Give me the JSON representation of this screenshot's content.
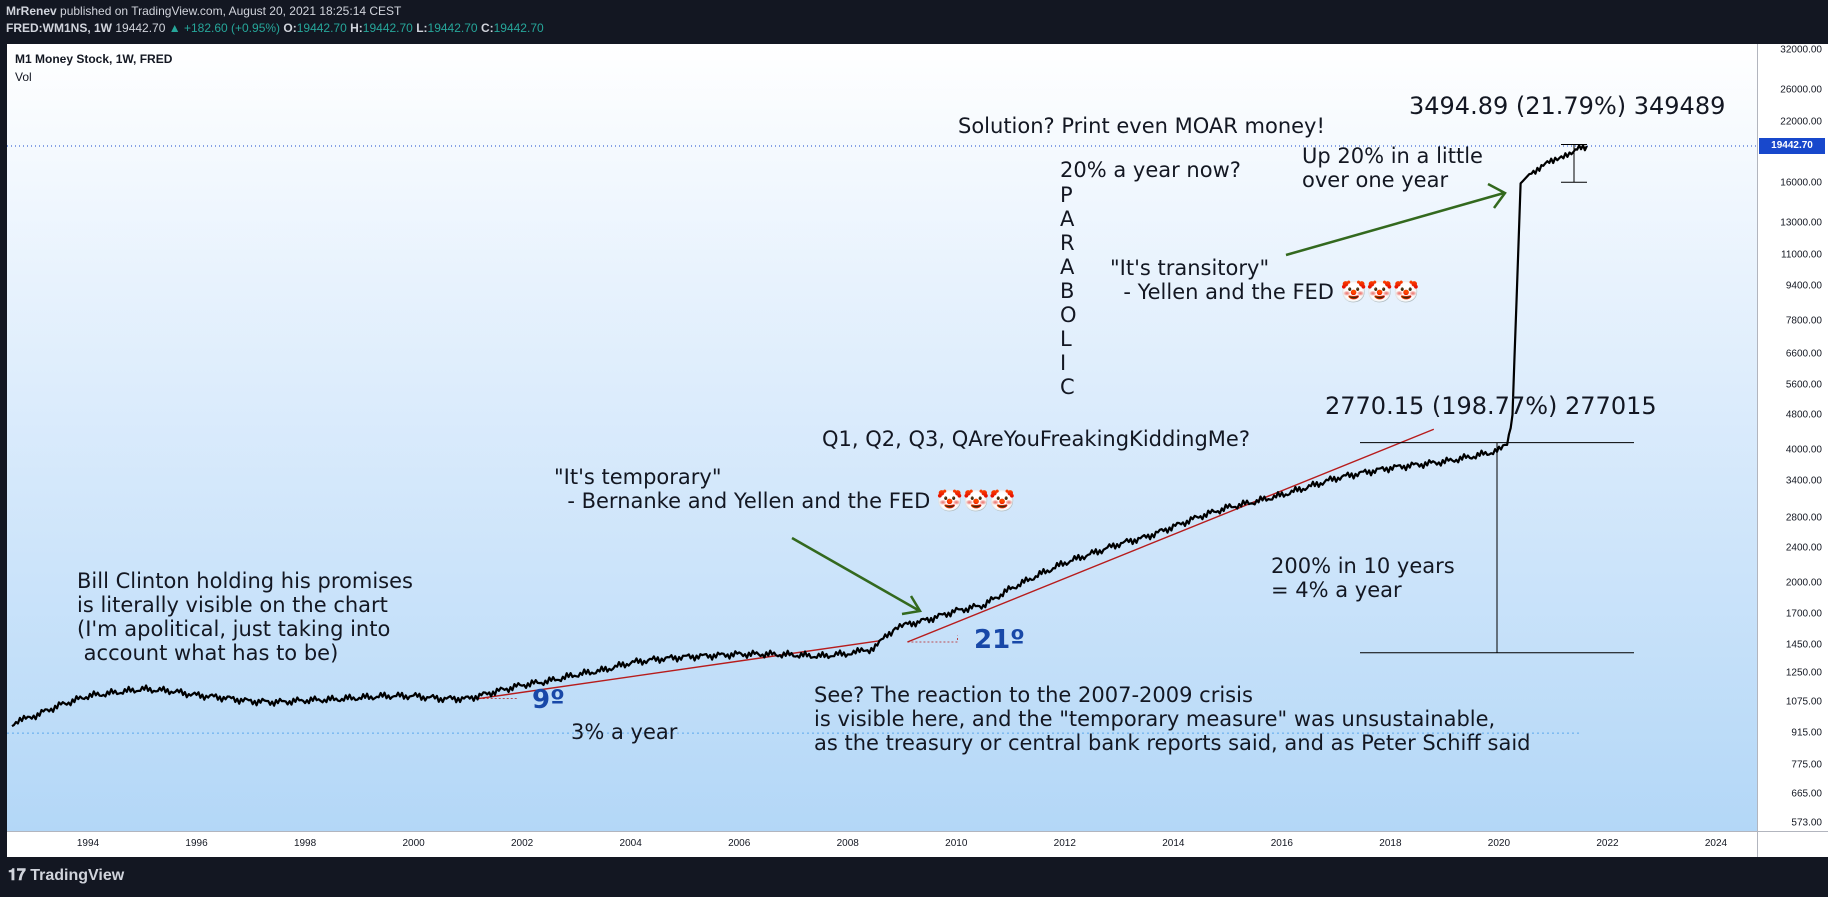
{
  "header": {
    "author": "MrRenev",
    "published": "published on TradingView.com, August 20, 2021 18:25:14 CEST",
    "symbol": "FRED:WM1NS, 1W",
    "price": "19442.70",
    "change": "▲ +182.60 (+0.95%)",
    "o_label": "O:",
    "o": "19442.70",
    "h_label": "H:",
    "h": "19442.70",
    "l_label": "L:",
    "l": "19442.70",
    "c_label": "C:",
    "c": "19442.70"
  },
  "legend": {
    "title": "M1 Money Stock, 1W, FRED",
    "vol": "Vol"
  },
  "footer": {
    "logo": "TradingView"
  },
  "colors": {
    "line": "#000000",
    "trend": "#b71c1c",
    "arrow": "#33691e",
    "price_tag": "#1848cc",
    "degree": "#1848a8"
  },
  "chart_data": {
    "type": "line",
    "scale": "log",
    "series": [
      {
        "x": [
          1992.6,
          1993.0,
          1993.5,
          1994.0,
          1994.5,
          1995.0,
          1995.5,
          1996.0,
          1996.5,
          1997.0,
          1997.5,
          1998.0,
          1998.5,
          1999.0,
          1999.5,
          2000.0,
          2000.5,
          2001.0,
          2001.5,
          2002.0,
          2002.5,
          2003.0,
          2003.5,
          2004.0,
          2004.5,
          2005.0,
          2005.5,
          2006.0,
          2006.5,
          2007.0,
          2007.5,
          2008.0,
          2008.4,
          2008.8,
          2009.0,
          2009.5,
          2010.0,
          2010.5,
          2011.0,
          2011.5,
          2012.0,
          2012.5,
          2013.0,
          2013.5,
          2014.0,
          2014.5,
          2015.0,
          2015.5,
          2016.0,
          2016.5,
          2017.0,
          2017.5,
          2018.0,
          2018.5,
          2019.0,
          2019.5,
          2020.0,
          2020.15,
          2020.25,
          2020.4,
          2020.6,
          2021.0,
          2021.3,
          2021.62
        ],
        "y": [
          960,
          1000,
          1060,
          1110,
          1130,
          1150,
          1140,
          1115,
          1100,
          1080,
          1075,
          1085,
          1090,
          1100,
          1110,
          1110,
          1095,
          1095,
          1135,
          1175,
          1200,
          1240,
          1270,
          1320,
          1345,
          1360,
          1370,
          1380,
          1380,
          1375,
          1365,
          1385,
          1410,
          1540,
          1600,
          1655,
          1730,
          1780,
          1940,
          2080,
          2220,
          2330,
          2450,
          2540,
          2680,
          2830,
          2960,
          3050,
          3160,
          3300,
          3450,
          3550,
          3640,
          3700,
          3760,
          3860,
          3980,
          4100,
          4800,
          16000,
          17000,
          18000,
          18800,
          19442.7
        ]
      }
    ],
    "yticks": [
      "573.00",
      "665.00",
      "775.00",
      "915.00",
      "1075.00",
      "1250.00",
      "1450.00",
      "1700.00",
      "2000.00",
      "2400.00",
      "2800.00",
      "3400.00",
      "4000.00",
      "4800.00",
      "5600.00",
      "6600.00",
      "7800.00",
      "9400.00",
      "11000.00",
      "13000.00",
      "16000.00",
      "22000.00",
      "26000.00",
      "32000.00"
    ],
    "xticks": [
      "1994",
      "1996",
      "1998",
      "2000",
      "2002",
      "2004",
      "2006",
      "2008",
      "2010",
      "2012",
      "2014",
      "2016",
      "2018",
      "2020",
      "2022",
      "2024"
    ],
    "last_price_label": "19442.70",
    "annotations": [
      "Solution? Print even MOAR money!",
      "20% a year now?",
      "Up 20% in a little\nover one year",
      "\"It's transitory\"\n  - Yellen and the FED 🤡🤡🤡",
      "2770.15 (198.77%) 277015",
      "3494.89 (21.79%) 349489",
      "Q1, Q2, Q3, QAreYouFreakingKiddingMe?",
      "\"It's temporary\"\n  - Bernanke and Yellen and the FED 🤡🤡🤡",
      "Bill Clinton holding his promises\nis literally visible on the chart\n(I'm apolitical, just taking into\n account what has to be)",
      "200% in 10 years\n= 4% a year",
      "See? The reaction to the 2007-2009 crisis\nis visible here, and the \"temporary measure\" was unsustainable,\nas the treasury or central bank reports said, and as Peter Schiff said",
      "3% a year",
      "9º",
      "21º"
    ],
    "parabolic_letters": [
      "P",
      "A",
      "R",
      "A",
      "B",
      "O",
      "L",
      "I",
      "C"
    ]
  }
}
